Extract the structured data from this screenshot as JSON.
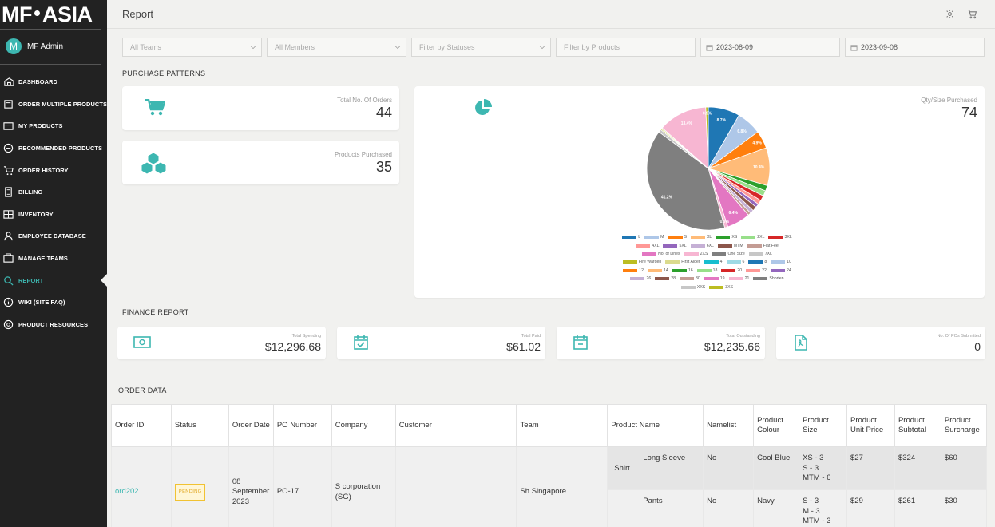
{
  "brand": {
    "left": "MF",
    "right": "ASIA"
  },
  "user": {
    "initial": "M",
    "name": "MF Admin"
  },
  "nav": [
    {
      "label": "DASHBOARD",
      "icon": "dashboard-icon"
    },
    {
      "label": "ORDER MULTIPLE PRODUCTS",
      "icon": "order-multiple-icon"
    },
    {
      "label": "MY PRODUCTS",
      "icon": "my-products-icon"
    },
    {
      "label": "RECOMMENDED PRODUCTS",
      "icon": "recommended-icon"
    },
    {
      "label": "ORDER HISTORY",
      "icon": "cart-icon"
    },
    {
      "label": "BILLING",
      "icon": "billing-icon"
    },
    {
      "label": "INVENTORY",
      "icon": "inventory-icon"
    },
    {
      "label": "EMPLOYEE DATABASE",
      "icon": "person-icon"
    },
    {
      "label": "MANAGE TEAMS",
      "icon": "teams-icon"
    },
    {
      "label": "REPORT",
      "icon": "search-icon",
      "active": true
    },
    {
      "label": "WIKI (SITE FAQ)",
      "icon": "info-icon"
    },
    {
      "label": "PRODUCT RESOURCES",
      "icon": "resources-icon"
    }
  ],
  "header": {
    "title": "Report"
  },
  "filters": {
    "teams": "All Teams",
    "members": "All Members",
    "statuses": "Filter by Statuses",
    "products": "Filter by Products",
    "date_from": "2023-08-09",
    "date_to": "2023-09-08"
  },
  "purchase": {
    "title": "PURCHASE PATTERNS",
    "orders_label": "Total No. Of Orders",
    "orders_value": "44",
    "products_label": "Products Purchased",
    "products_value": "35",
    "qty_label": "Qty/Size Purchased",
    "qty_value": "74"
  },
  "chart_data": {
    "type": "pie",
    "slices": [
      {
        "label": "L",
        "value": 8.7,
        "color": "#1f77b4"
      },
      {
        "label": "M",
        "value": 6.8,
        "color": "#aec7e8"
      },
      {
        "label": "S",
        "value": 4.9,
        "color": "#ff7f0e"
      },
      {
        "label": "XL",
        "value": 10.4,
        "color": "#ffbb78"
      },
      {
        "label": "XS",
        "value": 1.5,
        "color": "#2ca02c"
      },
      {
        "label": "2XL",
        "value": 1.5,
        "color": "#98df8a"
      },
      {
        "label": "3XL",
        "value": 1.4,
        "color": "#d62728"
      },
      {
        "label": "4XL",
        "value": 1.2,
        "color": "#ff9896"
      },
      {
        "label": "5XL",
        "value": 1.0,
        "color": "#9467bd"
      },
      {
        "label": "MTM",
        "value": 1.2,
        "color": "#8c564b"
      },
      {
        "label": "6XL",
        "value": 1.0,
        "color": "#c5b0d5"
      },
      {
        "label": "Flat Fee",
        "value": 0.8,
        "color": "#c49c94"
      },
      {
        "label": "No. of Lines",
        "value": 6.4,
        "color": "#e377c2"
      },
      {
        "label": "2XS",
        "value": 0.9,
        "color": "#f7b6d2"
      },
      {
        "label": "One Size",
        "value": 41.2,
        "color": "#7f7f7f"
      },
      {
        "label": "7XL",
        "value": 0.8,
        "color": "#c7c7c7"
      },
      {
        "label": "Fire Warden",
        "value": 0.3,
        "color": "#bcbd22"
      },
      {
        "label": "First Aider",
        "value": 0.3,
        "color": "#dbdb8d"
      },
      {
        "label": "21",
        "value": 13.4,
        "color": "#f7b6d2"
      },
      {
        "label": "3XS",
        "value": 0.7,
        "color": "#bcbd22"
      }
    ],
    "slice_labels": [
      "8.7%",
      "6.8%",
      "4.9%",
      "10.4%",
      "6.4%",
      "0.9%",
      "41.2%",
      "13.4%",
      "0.9%"
    ],
    "legend_rows": [
      [
        [
          "L",
          "#1f77b4"
        ],
        [
          "M",
          "#aec7e8"
        ],
        [
          "S",
          "#ff7f0e"
        ],
        [
          "XL",
          "#ffbb78"
        ],
        [
          "XS",
          "#2ca02c"
        ],
        [
          "2XL",
          "#98df8a"
        ],
        [
          "3XL",
          "#d62728"
        ]
      ],
      [
        [
          "4XL",
          "#ff9896"
        ],
        [
          "5XL",
          "#9467bd"
        ],
        [
          "6XL",
          "#c5b0d5"
        ],
        [
          "MTM",
          "#8c564b"
        ],
        [
          "Flat Fee",
          "#c49c94"
        ]
      ],
      [
        [
          "No. of Lines",
          "#e377c2"
        ],
        [
          "2XS",
          "#f7b6d2"
        ],
        [
          "One Size",
          "#7f7f7f"
        ],
        [
          "7XL",
          "#c7c7c7"
        ]
      ],
      [
        [
          "Fire Warden",
          "#bcbd22"
        ],
        [
          "First Aider",
          "#dbdb8d"
        ],
        [
          "4",
          "#17becf"
        ],
        [
          "6",
          "#9edae5"
        ],
        [
          "8",
          "#1f77b4"
        ],
        [
          "10",
          "#aec7e8"
        ]
      ],
      [
        [
          "12",
          "#ff7f0e"
        ],
        [
          "14",
          "#ffbb78"
        ],
        [
          "16",
          "#2ca02c"
        ],
        [
          "18",
          "#98df8a"
        ],
        [
          "20",
          "#d62728"
        ],
        [
          "22",
          "#ff9896"
        ],
        [
          "24",
          "#9467bd"
        ]
      ],
      [
        [
          "26",
          "#c5b0d5"
        ],
        [
          "28",
          "#8c564b"
        ],
        [
          "30",
          "#c49c94"
        ],
        [
          "19",
          "#e377c2"
        ],
        [
          "21",
          "#f7b6d2"
        ],
        [
          "Shorten",
          "#7f7f7f"
        ]
      ],
      [
        [
          "XXS",
          "#c7c7c7"
        ],
        [
          "3XS",
          "#bcbd22"
        ]
      ]
    ]
  },
  "finance": {
    "title": "FINANCE REPORT",
    "cards": [
      {
        "label": "Total Spending",
        "value": "$12,296.68",
        "icon": "money-icon"
      },
      {
        "label": "Total Paid",
        "value": "$61.02",
        "icon": "calendar-check-icon"
      },
      {
        "label": "Total Outstanding",
        "value": "$12,235.66",
        "icon": "calendar-minus-icon"
      },
      {
        "label": "No. Of POs Submitted",
        "value": "0",
        "icon": "pdf-file-icon"
      }
    ]
  },
  "orders": {
    "title": "ORDER DATA",
    "columns": [
      "Order ID",
      "Status",
      "Order Date",
      "PO Number",
      "Company",
      "Customer",
      "Team",
      "Product Name",
      "Namelist",
      "Product Colour",
      "Product Size",
      "Product Unit Price",
      "Product Subtotal",
      "Product Surcharge"
    ],
    "row": {
      "order_id": "ord202",
      "status": "PENDING",
      "date": "08 September 2023",
      "po": "PO-17",
      "company": "S corporation (SG)",
      "customer": "",
      "team": "Sh Singapore",
      "items": [
        {
          "group": "Shirt",
          "name": "Long Sleeve",
          "namelist": "No",
          "colour": "Cool Blue",
          "size": [
            "XS - 3",
            "S - 3",
            "MTM - 6"
          ],
          "unit": "$27",
          "subtotal": "$324",
          "surcharge": "$60"
        },
        {
          "group": "",
          "name": "Pants",
          "namelist": "No",
          "colour": "Navy",
          "size": [
            "S - 3",
            "M - 3",
            "MTM - 3"
          ],
          "unit": "$29",
          "subtotal": "$261",
          "surcharge": "$30"
        }
      ]
    }
  }
}
